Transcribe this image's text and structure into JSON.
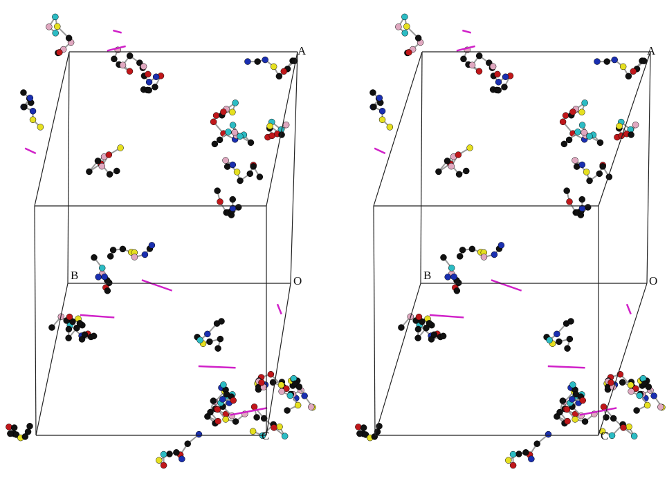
{
  "views": [
    {
      "labels": {
        "a": "A",
        "b": "B",
        "o": "O",
        "c": "C"
      }
    },
    {
      "labels": {
        "a": "A",
        "b": "B",
        "o": "O",
        "c": "C"
      }
    }
  ]
}
